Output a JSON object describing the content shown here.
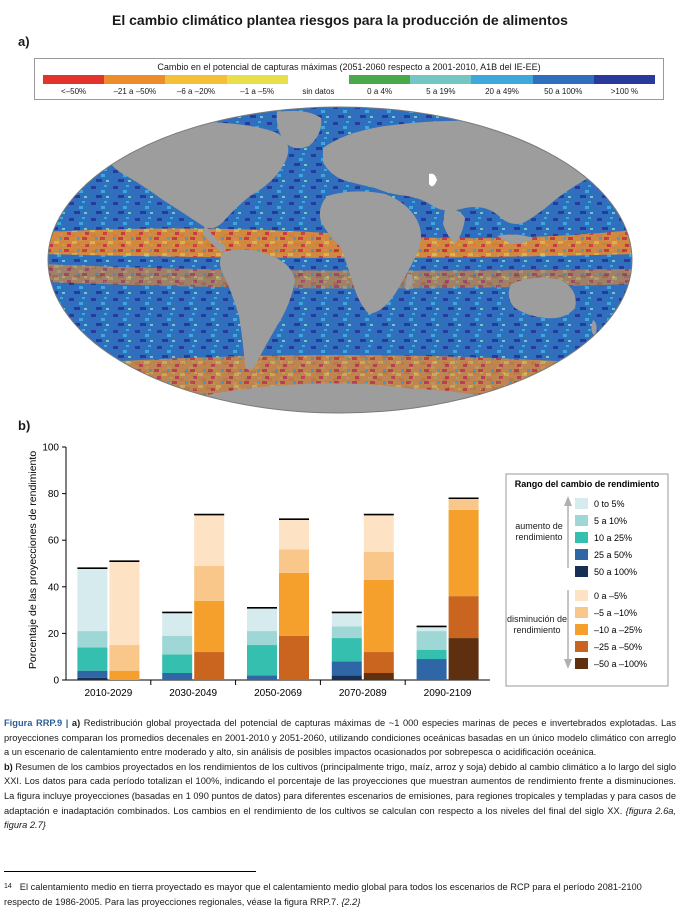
{
  "title": "El cambio climático plantea riesgos para la producción de alimentos",
  "panel_a_label": "a)",
  "panel_b_label": "b)",
  "legend_a": {
    "title": "Cambio en el potencial de capturas máximas (2051-2060 respecto a 2001-2010, A1B del IE-EE)",
    "items": [
      {
        "label": "<–50%",
        "color": "#e2332c"
      },
      {
        "label": "–21 a –50%",
        "color": "#ee8c2b"
      },
      {
        "label": "–6 a –20%",
        "color": "#f3c037"
      },
      {
        "label": "–1 a –5%",
        "color": "#e8df4a"
      },
      {
        "label": "sin datos",
        "color": "#ffffff"
      },
      {
        "label": "0 a 4%",
        "color": "#4aa84a"
      },
      {
        "label": "5 a 19%",
        "color": "#72c6c3"
      },
      {
        "label": "20 a 49%",
        "color": "#3ea8dc"
      },
      {
        "label": "50 a 100%",
        "color": "#2f6fbe"
      },
      {
        "label": ">100 %",
        "color": "#283b9a"
      }
    ]
  },
  "chart_data": {
    "type": "bar",
    "stacked": true,
    "ylabel": "Porcentaje de las proyecciones de rendimiento",
    "ylim": [
      0,
      100
    ],
    "yticks": [
      0,
      20,
      40,
      60,
      80,
      100
    ],
    "periods": [
      "2010-2029",
      "2030-2049",
      "2050-2069",
      "2070-2089",
      "2090-2109"
    ],
    "increase_series": [
      {
        "name": "50 a 100%",
        "color": "#172f55",
        "values": [
          1,
          0,
          0,
          2,
          0
        ]
      },
      {
        "name": "25 a 50%",
        "color": "#2f66a5",
        "values": [
          3,
          3,
          2,
          6,
          9
        ]
      },
      {
        "name": "10 a 25%",
        "color": "#35bfae",
        "values": [
          10,
          8,
          13,
          10,
          4
        ]
      },
      {
        "name": "5 a 10%",
        "color": "#9fd6d6",
        "values": [
          7,
          8,
          6,
          5,
          8
        ]
      },
      {
        "name": "0 to 5%",
        "color": "#d5ebee",
        "values": [
          27,
          10,
          10,
          6,
          2
        ]
      }
    ],
    "decrease_series": [
      {
        "name": "–50 a –100%",
        "color": "#5e3010",
        "values": [
          0,
          0,
          0,
          3,
          18
        ]
      },
      {
        "name": "–25 a –50%",
        "color": "#c9651f",
        "values": [
          0,
          12,
          19,
          9,
          18
        ]
      },
      {
        "name": "–10 a –25%",
        "color": "#f5a02c",
        "values": [
          4,
          22,
          27,
          31,
          37
        ]
      },
      {
        "name": "–5 a –10%",
        "color": "#f9c789",
        "values": [
          11,
          15,
          10,
          12,
          5
        ]
      },
      {
        "name": "0 a –5%",
        "color": "#fde3c3",
        "values": [
          36,
          22,
          13,
          16,
          0
        ]
      }
    ],
    "legend": {
      "title": "Rango del cambio de rendimiento",
      "increase_label": "aumento de rendimiento",
      "decrease_label": "disminución de rendimiento"
    }
  },
  "caption": {
    "label": "Figura RRP.9 |",
    "part_a_letter": "a)",
    "part_a_text": "Redistribución global proyectada del potencial de capturas máximas de ~1 000 especies marinas de peces e invertebrados explotadas. Las proyecciones comparan los promedios decenales en 2001-2010 y 2051-2060, utilizando condiciones oceánicas basadas en un único modelo climático con arreglo a un escenario de calentamiento entre moderado y alto, sin análisis de posibles impactos ocasionados por sobrepesca o acidificación oceánica.",
    "part_b_letter": "b)",
    "part_b_text": "Resumen de los cambios proyectados en los rendimientos de los cultivos (principalmente trigo, maíz, arroz y soja) debido al cambio climático a lo largo del siglo XXI. Los datos para cada período totalizan el 100%, indicando el porcentaje de las proyecciones que muestran aumentos de rendimiento frente a disminuciones. La figura incluye proyecciones (basadas en 1 090 puntos de datos) para diferentes escenarios de emisiones, para regiones tropicales y templadas y para casos de adaptación e inadaptación combinados. Los cambios en el rendimiento de los cultivos se calculan con respecto a los niveles del final del siglo XX.",
    "refs": "{figura 2.6a, figura 2.7}"
  },
  "footnote": {
    "number": "14",
    "text": "El calentamiento medio en tierra proyectado es mayor que el calentamiento medio global para todos los escenarios de RCP para el período 2081-2100 respecto de 1986-2005. Para las proyecciones regionales, véase la figura RRP.7.",
    "refs": "{2.2}"
  }
}
